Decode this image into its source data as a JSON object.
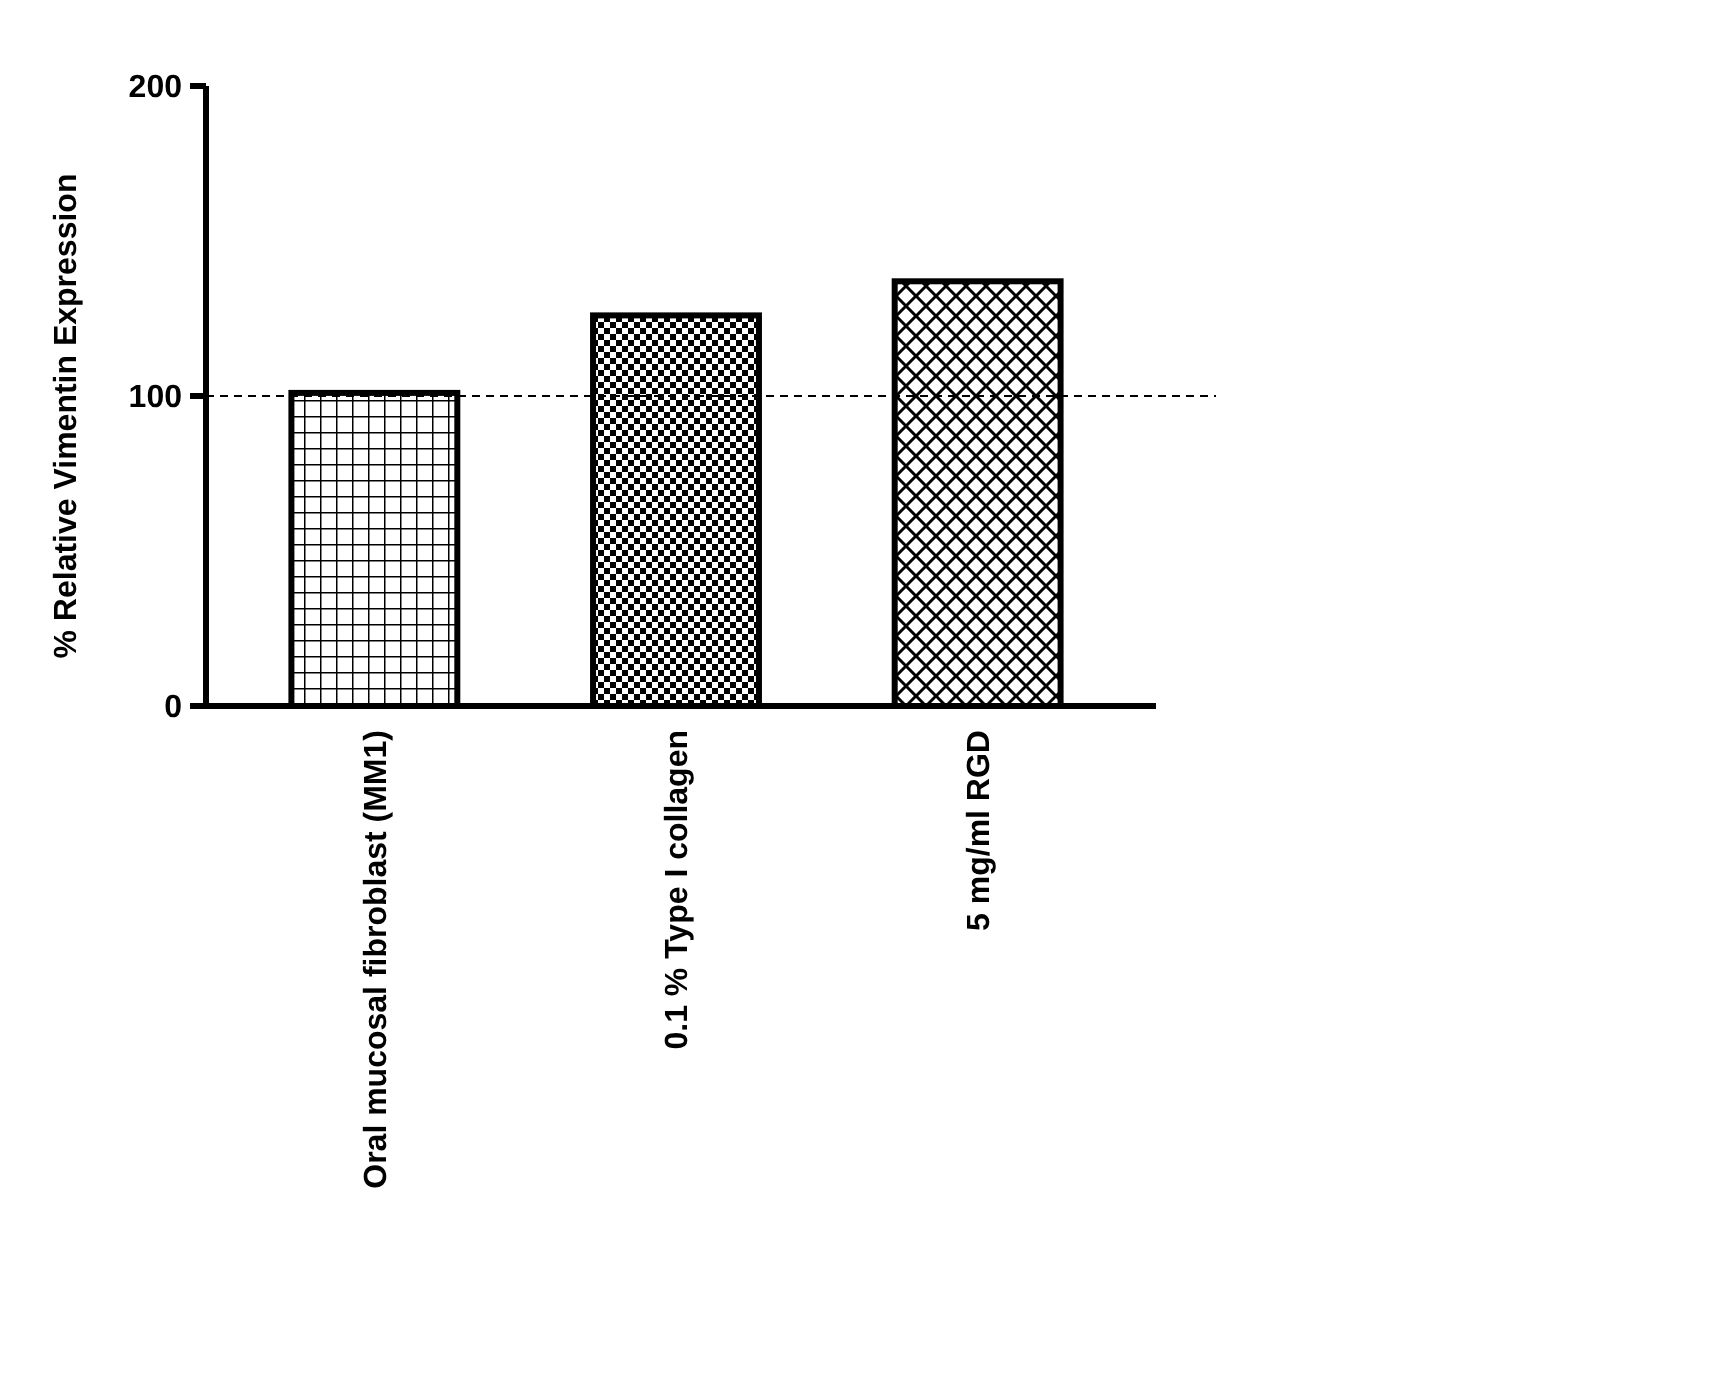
{
  "chart_data": {
    "type": "bar",
    "ylabel": "% Relative Vimentin Expression",
    "categories": [
      "Oral mucosal fibroblast (MM1)",
      "0.1 % Type I collagen",
      "5 mg/ml RGD"
    ],
    "values": [
      101,
      126,
      137
    ],
    "color": "#000000",
    "ylim": [
      0,
      200
    ],
    "yticks": [
      0,
      100,
      200
    ],
    "grid": false,
    "ref_lines": [
      {
        "axis": "y",
        "value": 100,
        "line_style": "dashed",
        "color": "#000000"
      }
    ]
  }
}
